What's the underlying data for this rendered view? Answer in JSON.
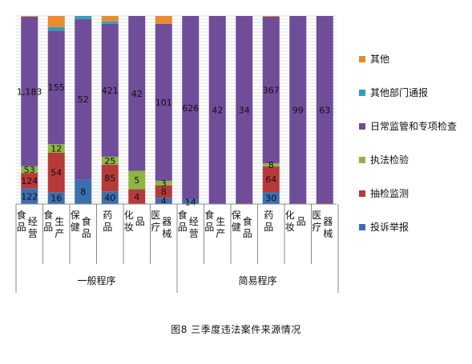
{
  "caption": "图8   三季度违法案件来源情况",
  "chart_data": {
    "type": "bar",
    "stacked": "percent",
    "grid": true,
    "legend_position": "right",
    "groups": [
      {
        "label": "一般程序",
        "categories": [
          "食品经营",
          "食品生产",
          "保健食品",
          "药品",
          "化妆品",
          "医疗器械"
        ]
      },
      {
        "label": "简易程序",
        "categories": [
          "食品经营",
          "食品生产",
          "保健食品",
          "药品",
          "化妆品",
          "医疗器械"
        ]
      }
    ],
    "series": [
      {
        "name": "投诉举报",
        "color": "#3b6fb0",
        "values": [
          122,
          16,
          8,
          40,
          0,
          4,
          14,
          0,
          0,
          30,
          0,
          0
        ],
        "labels": [
          "122",
          "16",
          "8",
          "40",
          "",
          "4",
          "14",
          "",
          "",
          "30",
          "",
          ""
        ]
      },
      {
        "name": "抽检监测",
        "color": "#b63a3a",
        "values": [
          124,
          54,
          0,
          85,
          4,
          8,
          0,
          0,
          0,
          64,
          0,
          0
        ],
        "labels": [
          "124",
          "54",
          "",
          "85",
          "4",
          "8",
          "",
          "",
          "",
          "64",
          "",
          ""
        ]
      },
      {
        "name": "执法检验",
        "color": "#8fb445",
        "values": [
          53,
          12,
          0,
          25,
          5,
          3,
          0,
          0,
          0,
          8,
          0,
          0
        ],
        "labels": [
          "53",
          "12",
          "",
          "25",
          "5",
          "3",
          "",
          "",
          "",
          "8",
          "",
          ""
        ]
      },
      {
        "name": "日常监管和专项检查",
        "color": "#6f4d99",
        "values": [
          1183,
          155,
          52,
          421,
          42,
          101,
          626,
          42,
          34,
          367,
          99,
          63
        ],
        "labels": [
          "1,183",
          "155",
          "52",
          "421",
          "42",
          "101",
          "626",
          "42",
          "34",
          "367",
          "99",
          "63"
        ]
      },
      {
        "name": "其他部门通报",
        "color": "#2f9fb8",
        "values": [
          0,
          5,
          1,
          8,
          0,
          0,
          0,
          0,
          0,
          0,
          0,
          0
        ],
        "labels": [
          "",
          "",
          "",
          "",
          "",
          "",
          "",
          "",
          "",
          "",
          "",
          ""
        ]
      },
      {
        "name": "其他",
        "color": "#e98b2e",
        "values": [
          6,
          15,
          0,
          17,
          0,
          5,
          0,
          0,
          0,
          2,
          0,
          0
        ],
        "labels": [
          "",
          "",
          "",
          "",
          "",
          "",
          "",
          "",
          "",
          "",
          "",
          ""
        ]
      }
    ]
  }
}
